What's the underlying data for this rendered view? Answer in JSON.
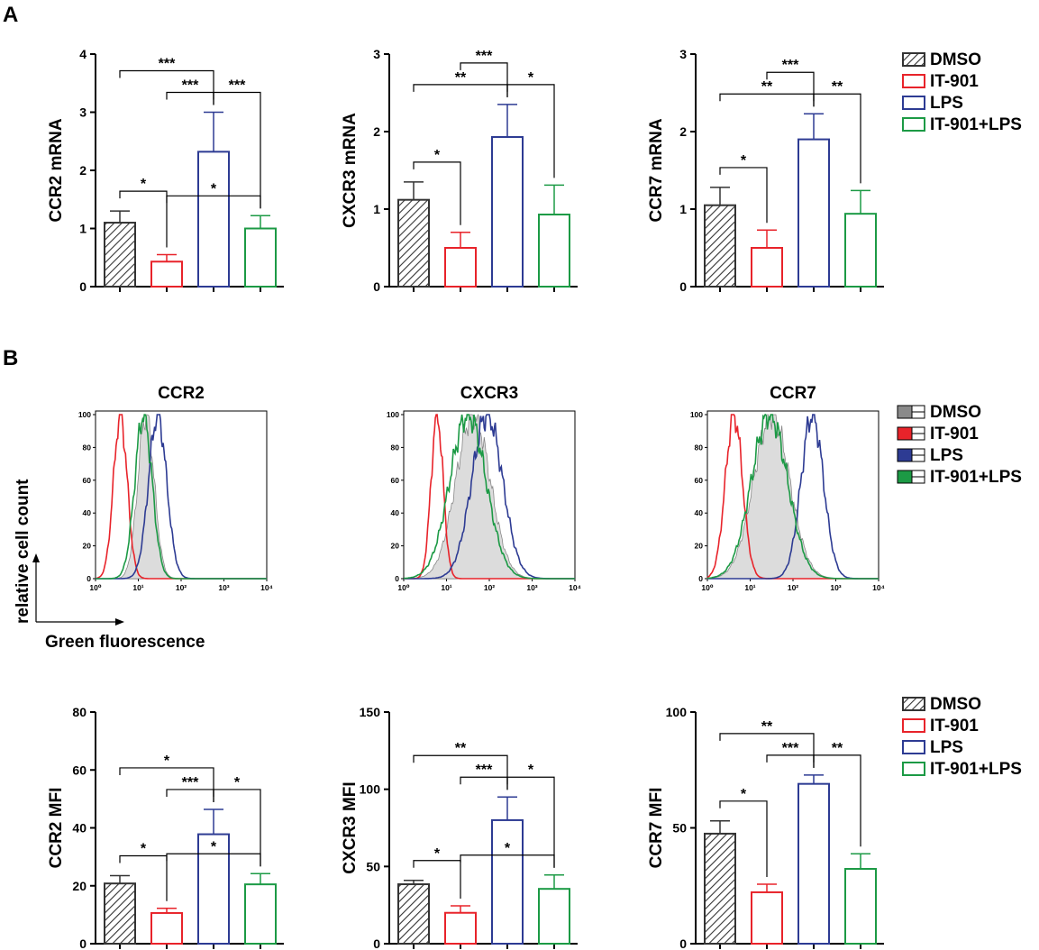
{
  "panel_labels": [
    "A",
    "B"
  ],
  "colors": {
    "DMSO": "#333333",
    "IT-901": "#e8232a",
    "LPS": "#2d3b93",
    "IT-901+LPS": "#1c9a45",
    "DMSO_fill": "#8a8a8a"
  },
  "legend": {
    "labels": [
      "DMSO",
      "IT-901",
      "LPS",
      "IT-901+LPS"
    ]
  },
  "flow_axis": {
    "x_label": "Green fluorescence",
    "y_label": "relative cell count"
  },
  "chart_data": [
    {
      "id": "ccr2-mrna",
      "type": "bar",
      "ylabel": "CCR2 mRNA",
      "categories": [
        "DMSO",
        "IT-901",
        "LPS",
        "IT-901+LPS"
      ],
      "values": [
        1.1,
        0.43,
        2.32,
        1.0
      ],
      "errors": [
        0.2,
        0.12,
        0.68,
        0.22
      ],
      "ylim": [
        0,
        4
      ],
      "yticks": [
        "0",
        "1",
        "2",
        "3",
        "4"
      ],
      "brackets": [
        {
          "a": 0,
          "b": 1,
          "label": "*"
        },
        {
          "a": 2,
          "b": 3,
          "label": "***"
        },
        {
          "a": 1,
          "b": 2,
          "label": "***"
        },
        {
          "a": 0,
          "b": 2,
          "label": "***"
        },
        {
          "a": 1,
          "b": 3,
          "label": "*"
        }
      ]
    },
    {
      "id": "cxcr3-mrna",
      "type": "bar",
      "ylabel": "CXCR3 mRNA",
      "categories": [
        "DMSO",
        "IT-901",
        "LPS",
        "IT-901+LPS"
      ],
      "values": [
        1.12,
        0.5,
        1.93,
        0.93
      ],
      "errors": [
        0.23,
        0.2,
        0.42,
        0.38
      ],
      "ylim": [
        0,
        3
      ],
      "yticks": [
        "0",
        "1",
        "2",
        "3"
      ],
      "brackets": [
        {
          "a": 0,
          "b": 1,
          "label": "*"
        },
        {
          "a": 2,
          "b": 3,
          "label": "*"
        },
        {
          "a": 0,
          "b": 2,
          "label": "**"
        },
        {
          "a": 1,
          "b": 2,
          "label": "***"
        }
      ]
    },
    {
      "id": "ccr7-mrna",
      "type": "bar",
      "ylabel": "CCR7 mRNA",
      "categories": [
        "DMSO",
        "IT-901",
        "LPS",
        "IT-901+LPS"
      ],
      "values": [
        1.05,
        0.5,
        1.9,
        0.94
      ],
      "errors": [
        0.23,
        0.23,
        0.33,
        0.3
      ],
      "ylim": [
        0,
        3
      ],
      "yticks": [
        "0",
        "1",
        "2",
        "3"
      ],
      "brackets": [
        {
          "a": 0,
          "b": 1,
          "label": "*"
        },
        {
          "a": 2,
          "b": 3,
          "label": "**"
        },
        {
          "a": 0,
          "b": 2,
          "label": "**"
        },
        {
          "a": 1,
          "b": 2,
          "label": "***"
        }
      ]
    },
    {
      "id": "ccr2-flow",
      "type": "histogram",
      "title": "CCR2",
      "x_ticks": [
        "10⁰",
        "10¹",
        "10²",
        "10³",
        "10⁴"
      ],
      "y_ticks": [
        "0",
        "20",
        "40",
        "60",
        "80",
        "100"
      ],
      "series": [
        {
          "name": "DMSO",
          "peak_log": 1.18,
          "width_log": 0.19,
          "peak": 100
        },
        {
          "name": "IT-901",
          "peak_log": 0.58,
          "width_log": 0.16,
          "peak": 100
        },
        {
          "name": "LPS",
          "peak_log": 1.45,
          "width_log": 0.21,
          "peak": 100
        },
        {
          "name": "IT-901+LPS",
          "peak_log": 1.12,
          "width_log": 0.2,
          "peak": 100
        }
      ]
    },
    {
      "id": "cxcr3-flow",
      "type": "histogram",
      "title": "CXCR3",
      "x_ticks": [
        "10⁰",
        "10¹",
        "10²",
        "10³",
        "10⁴"
      ],
      "y_ticks": [
        "0",
        "20",
        "40",
        "60",
        "80",
        "100"
      ],
      "series": [
        {
          "name": "DMSO",
          "peak_log": 1.62,
          "width_log": 0.4,
          "peak": 100
        },
        {
          "name": "IT-901",
          "peak_log": 0.78,
          "width_log": 0.14,
          "peak": 100
        },
        {
          "name": "LPS",
          "peak_log": 1.95,
          "width_log": 0.36,
          "peak": 100
        },
        {
          "name": "IT-901+LPS",
          "peak_log": 1.5,
          "width_log": 0.42,
          "peak": 100
        }
      ]
    },
    {
      "id": "ccr7-flow",
      "type": "histogram",
      "title": "CCR7",
      "x_ticks": [
        "10⁰",
        "10¹",
        "10²",
        "10³",
        "10⁴"
      ],
      "y_ticks": [
        "0",
        "20",
        "40",
        "60",
        "80",
        "100"
      ],
      "series": [
        {
          "name": "DMSO",
          "peak_log": 1.5,
          "width_log": 0.42,
          "peak": 100
        },
        {
          "name": "IT-901",
          "peak_log": 0.62,
          "width_log": 0.2,
          "peak": 100
        },
        {
          "name": "LPS",
          "peak_log": 2.45,
          "width_log": 0.26,
          "peak": 100
        },
        {
          "name": "IT-901+LPS",
          "peak_log": 1.45,
          "width_log": 0.42,
          "peak": 100
        }
      ]
    },
    {
      "id": "ccr2-mfi",
      "type": "bar",
      "ylabel": "CCR2 MFI",
      "categories": [
        "DMSO",
        "IT-901",
        "LPS",
        "IT-901+LPS"
      ],
      "values": [
        20.8,
        10.6,
        37.8,
        20.5
      ],
      "errors": [
        2.7,
        1.6,
        8.6,
        3.7
      ],
      "ylim": [
        0,
        80
      ],
      "yticks": [
        "0",
        "20",
        "40",
        "60",
        "80"
      ],
      "brackets": [
        {
          "a": 0,
          "b": 1,
          "label": "*"
        },
        {
          "a": 2,
          "b": 3,
          "label": "*"
        },
        {
          "a": 1,
          "b": 2,
          "label": "***"
        },
        {
          "a": 1,
          "b": 3,
          "label": "*"
        },
        {
          "a": 0,
          "b": 2,
          "label": "*"
        }
      ]
    },
    {
      "id": "cxcr3-mfi",
      "type": "bar",
      "ylabel": "CXCR3 MFI",
      "categories": [
        "DMSO",
        "IT-901",
        "LPS",
        "IT-901+LPS"
      ],
      "values": [
        38.5,
        20,
        80,
        35.5
      ],
      "errors": [
        2.5,
        4.5,
        15,
        9
      ],
      "ylim": [
        0,
        150
      ],
      "yticks": [
        "0",
        "50",
        "100",
        "150"
      ],
      "brackets": [
        {
          "a": 0,
          "b": 1,
          "label": "*"
        },
        {
          "a": 2,
          "b": 3,
          "label": "*"
        },
        {
          "a": 1,
          "b": 2,
          "label": "***"
        },
        {
          "a": 1,
          "b": 3,
          "label": "*"
        },
        {
          "a": 0,
          "b": 2,
          "label": "**"
        }
      ]
    },
    {
      "id": "ccr7-mfi",
      "type": "bar",
      "ylabel": "CCR7 MFI",
      "categories": [
        "DMSO",
        "IT-901",
        "LPS",
        "IT-901+LPS"
      ],
      "values": [
        47.5,
        22.2,
        69,
        32.3
      ],
      "errors": [
        5.5,
        3.5,
        3.8,
        6.5
      ],
      "ylim": [
        0,
        100
      ],
      "yticks": [
        "0",
        "50",
        "100"
      ],
      "brackets": [
        {
          "a": 0,
          "b": 1,
          "label": "*"
        },
        {
          "a": 2,
          "b": 3,
          "label": "**"
        },
        {
          "a": 1,
          "b": 2,
          "label": "***"
        },
        {
          "a": 0,
          "b": 2,
          "label": "**"
        }
      ]
    }
  ]
}
